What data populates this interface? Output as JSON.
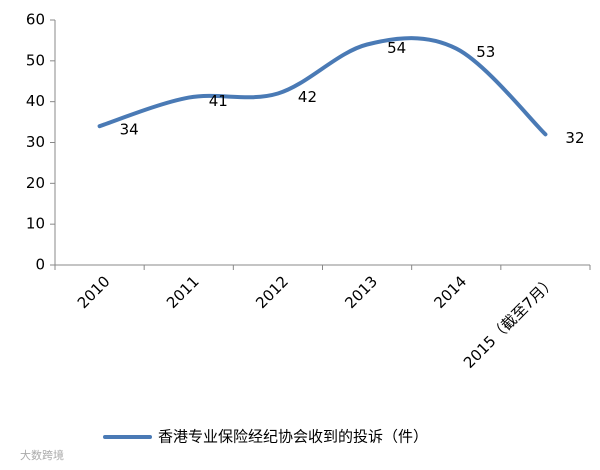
{
  "chart_data": {
    "type": "line",
    "categories": [
      "2010",
      "2011",
      "2012",
      "2013",
      "2014",
      "2015（截至7月）"
    ],
    "series": [
      {
        "name": "香港专业保险经纪协会收到的投诉（件）",
        "color": "#4a7ab5",
        "values": [
          34,
          41,
          42,
          54,
          53,
          32
        ]
      }
    ],
    "ylim": [
      0,
      60
    ],
    "yticks": [
      0,
      10,
      20,
      30,
      40,
      50,
      60
    ],
    "smooth": true,
    "legend": "bottom"
  },
  "watermark": "大数跨境"
}
